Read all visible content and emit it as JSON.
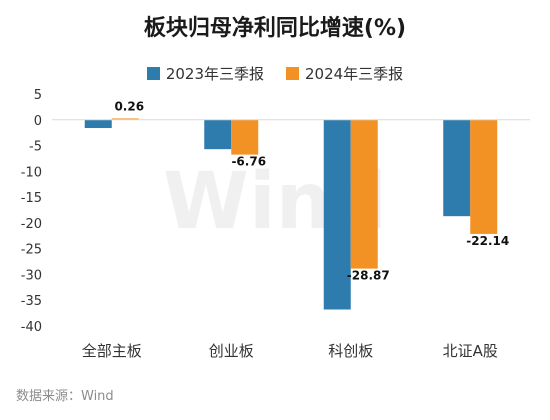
{
  "chart_data": {
    "type": "bar",
    "title": "板块归母净利同比增速(%)",
    "categories": [
      "全部主板",
      "创业板",
      "科创板",
      "北证A股"
    ],
    "series": [
      {
        "name": "2023年三季报",
        "color": "#2e7bad",
        "values": [
          -1.6,
          -5.7,
          -36.8,
          -18.7
        ]
      },
      {
        "name": "2024年三季报",
        "color": "#f39224",
        "values": [
          0.26,
          -6.76,
          -28.87,
          -22.14
        ]
      }
    ],
    "data_labels": {
      "series_index": 1,
      "values": [
        "0.26",
        "-6.76",
        "-28.87",
        "-22.14"
      ]
    },
    "ylim": [
      -40,
      5
    ],
    "yticks": [
      5,
      0,
      -5,
      -10,
      -15,
      -20,
      -25,
      -30,
      -35,
      -40
    ],
    "legend_position": "top-center",
    "grid": false,
    "watermark": "Wind"
  },
  "source_note": "数据来源：Wind"
}
